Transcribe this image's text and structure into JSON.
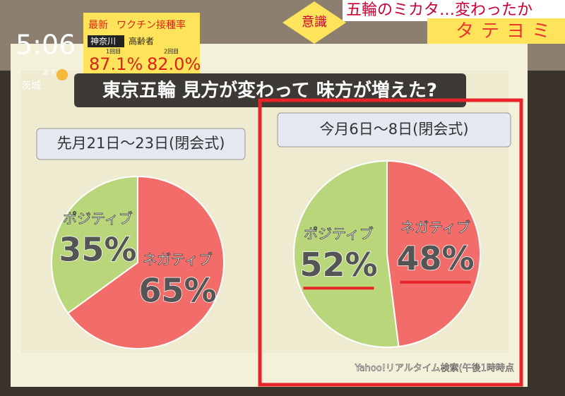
{
  "broadcast": {
    "clock": "5:06",
    "vaccine": {
      "label": "最新",
      "title": "ワクチン接種率",
      "region": "神奈川",
      "group": "高齢者",
      "dose1_label": "1回目",
      "dose1": "87.1%",
      "dose2_label": "2回目",
      "dose2": "82.0%"
    },
    "weather": {
      "day": "あす",
      "place": "茨城"
    },
    "tag": "意識",
    "headline": "五輪のミカタ…変わったか",
    "corner": "タテヨミ"
  },
  "title": "東京五輪 見方が変わって 味方が増えた?",
  "source": "Yahoo!リアルタイム検索(午後1時時点",
  "chart_data": [
    {
      "type": "pie",
      "title": "先月21日～23日(閉会式)",
      "categories": [
        "ポジティブ",
        "ネガティブ"
      ],
      "values": [
        35,
        65
      ],
      "value_labels": [
        "35%",
        "65%"
      ],
      "colors": [
        "#b9d77a",
        "#f26d6a"
      ]
    },
    {
      "type": "pie",
      "title": "今月6日～8日(閉会式)",
      "categories": [
        "ポジティブ",
        "ネガティブ"
      ],
      "values": [
        52,
        48
      ],
      "value_labels": [
        "52%",
        "48%"
      ],
      "colors": [
        "#b9d77a",
        "#f26d6a"
      ]
    }
  ]
}
